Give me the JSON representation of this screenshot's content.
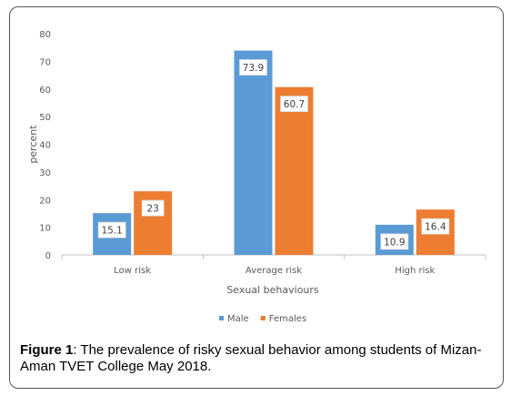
{
  "chart_data": {
    "type": "bar",
    "categories": [
      "Low risk",
      "Average risk",
      "High risk"
    ],
    "series": [
      {
        "name": "Male",
        "values": [
          15.1,
          73.9,
          10.9
        ],
        "color": "#5b9bd5"
      },
      {
        "name": "Females",
        "values": [
          23,
          60.7,
          16.4
        ],
        "color": "#ed7d31"
      }
    ],
    "value_labels": [
      [
        "15.1",
        "73.9",
        "10.9"
      ],
      [
        "23",
        "60.7",
        "16.4"
      ]
    ],
    "ylabel": "percent",
    "xlabel": "Sexual behaviours",
    "ylim": [
      0,
      80
    ],
    "yticks": [
      0,
      10,
      20,
      30,
      40,
      50,
      60,
      70,
      80
    ],
    "legend_position": "bottom",
    "grid": false
  },
  "caption": {
    "label": "Figure 1",
    "text": ": The prevalence of risky sexual behavior among students of Mizan-Aman TVET College May 2018."
  }
}
